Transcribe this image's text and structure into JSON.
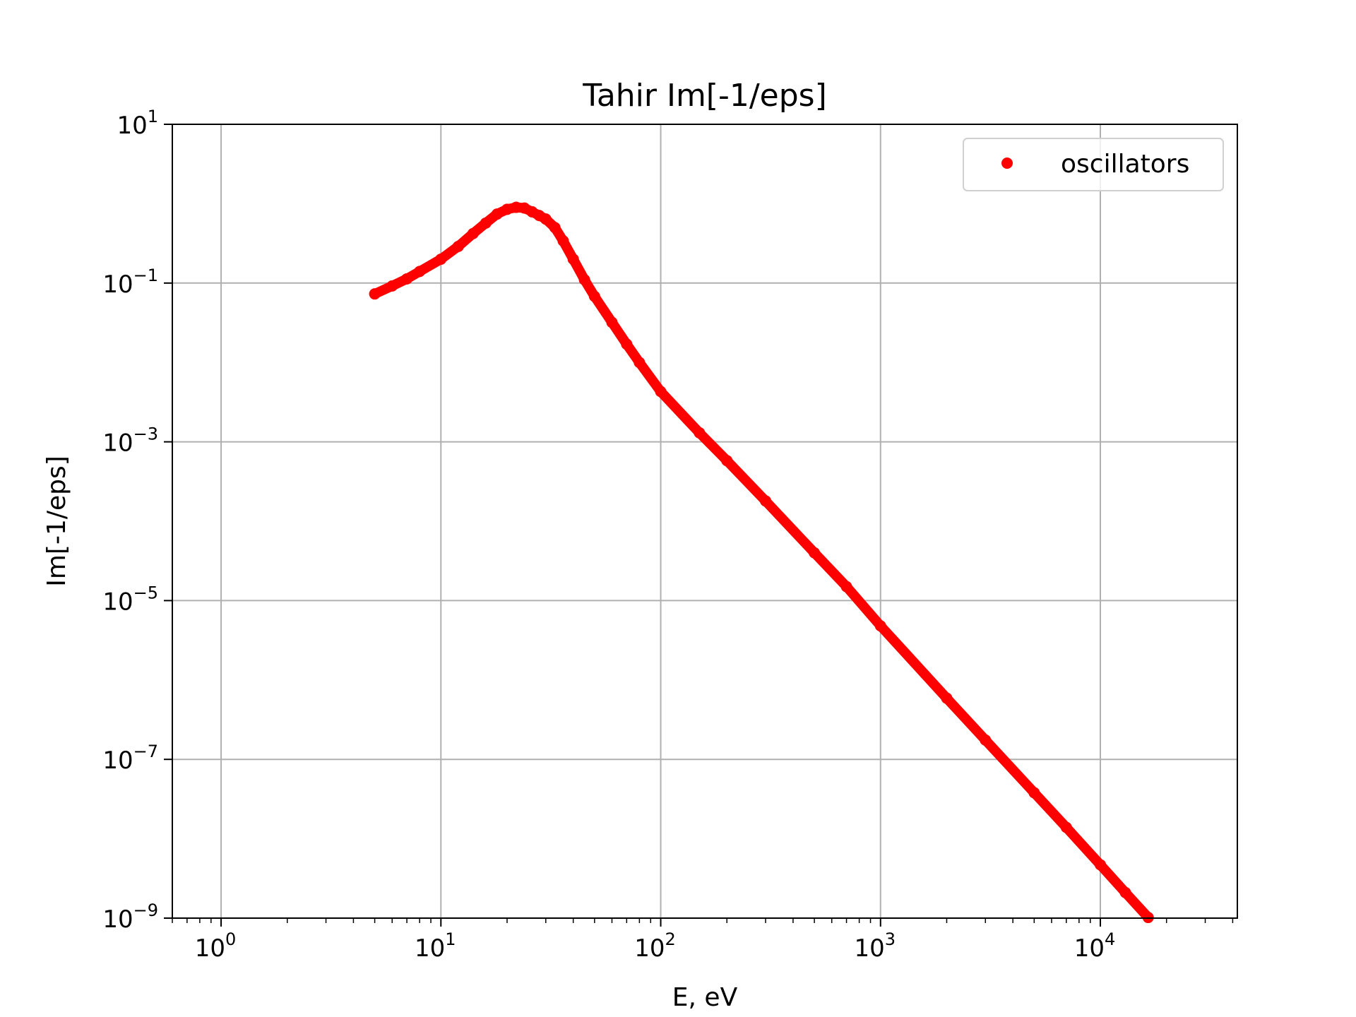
{
  "chart_data": {
    "type": "scatter",
    "title": "Tahir Im[-1/eps]",
    "xlabel": "E, eV",
    "ylabel": "Im[-1/eps]",
    "xscale": "log",
    "yscale": "log",
    "xlim": [
      0.6,
      42000
    ],
    "ylim": [
      1e-09,
      10
    ],
    "grid": true,
    "legend_position": "top-right",
    "x_ticks": [
      {
        "value": 1,
        "base": "10",
        "exp": "0"
      },
      {
        "value": 10,
        "base": "10",
        "exp": "1"
      },
      {
        "value": 100,
        "base": "10",
        "exp": "2"
      },
      {
        "value": 1000,
        "base": "10",
        "exp": "3"
      },
      {
        "value": 10000,
        "base": "10",
        "exp": "4"
      }
    ],
    "y_ticks": [
      {
        "value": 1e-09,
        "base": "10",
        "exp": "−9"
      },
      {
        "value": 1e-07,
        "base": "10",
        "exp": "−7"
      },
      {
        "value": 1e-05,
        "base": "10",
        "exp": "−5"
      },
      {
        "value": 0.001,
        "base": "10",
        "exp": "−3"
      },
      {
        "value": 0.1,
        "base": "10",
        "exp": "−1"
      },
      {
        "value": 10,
        "base": "10",
        "exp": "1"
      }
    ],
    "series": [
      {
        "name": "oscillators",
        "color": "#ff0000",
        "marker": "circle",
        "points": [
          [
            5.0,
            0.073
          ],
          [
            6.0,
            0.092
          ],
          [
            7.0,
            0.113
          ],
          [
            8.0,
            0.14
          ],
          [
            10.0,
            0.2
          ],
          [
            12.0,
            0.29
          ],
          [
            14.0,
            0.42
          ],
          [
            16.0,
            0.57
          ],
          [
            18.0,
            0.74
          ],
          [
            20.0,
            0.85
          ],
          [
            22.0,
            0.9
          ],
          [
            24.0,
            0.88
          ],
          [
            26.0,
            0.79
          ],
          [
            28.0,
            0.71
          ],
          [
            30.0,
            0.64
          ],
          [
            33.0,
            0.5
          ],
          [
            36.0,
            0.34
          ],
          [
            40.0,
            0.2
          ],
          [
            45.0,
            0.11
          ],
          [
            50.0,
            0.068
          ],
          [
            60.0,
            0.032
          ],
          [
            70.0,
            0.017
          ],
          [
            80.0,
            0.01
          ],
          [
            100.0,
            0.0043
          ],
          [
            150.0,
            0.0013
          ],
          [
            200.0,
            0.00058
          ],
          [
            300.0,
            0.00018
          ],
          [
            500.0,
            4e-05
          ],
          [
            700.0,
            1.5e-05
          ],
          [
            1000.0,
            4.8e-06
          ],
          [
            2000.0,
            5.9e-07
          ],
          [
            3000.0,
            1.75e-07
          ],
          [
            5000.0,
            3.8e-08
          ],
          [
            7000.0,
            1.39e-08
          ],
          [
            10000.0,
            4.7e-09
          ],
          [
            13000.0,
            2.1e-09
          ],
          [
            16500.0,
            1.02e-09
          ]
        ]
      }
    ]
  }
}
